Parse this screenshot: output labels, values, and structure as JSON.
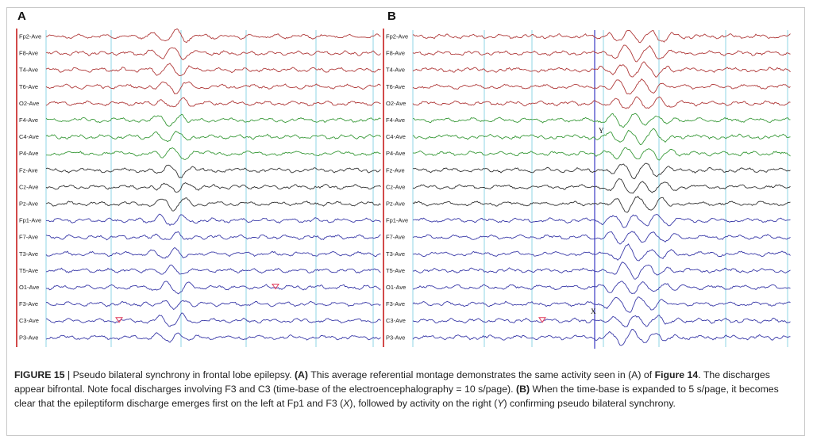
{
  "panels": [
    {
      "letter": "A",
      "channels": [
        "Fp2-Ave",
        "F8-Ave",
        "T4-Ave",
        "T6-Ave",
        "O2-Ave",
        "F4-Ave",
        "C4-Ave",
        "P4-Ave",
        "Fz-Ave",
        "Cz-Ave",
        "Pz-Ave",
        "Fp1-Ave",
        "F7-Ave",
        "T3-Ave",
        "T5-Ave",
        "O1-Ave",
        "F3-Ave",
        "C3-Ave",
        "P3-Ave"
      ]
    },
    {
      "letter": "B",
      "channels": [
        "Fp2-Ave",
        "F8-Ave",
        "T4-Ave",
        "T6-Ave",
        "O2-Ave",
        "F4-Ave",
        "C4-Ave",
        "P4-Ave",
        "Fz-Ave",
        "Cz-Ave",
        "Pz-Ave",
        "Fp1-Ave",
        "F7-Ave",
        "T3-Ave",
        "T5-Ave",
        "O1-Ave",
        "F3-Ave",
        "C3-Ave",
        "P3-Ave"
      ],
      "markers": {
        "x": "X",
        "y": "Y"
      }
    }
  ],
  "trace_colors": {
    "right": "#b03a3a",
    "central_right": "#3a9a3a",
    "midline": "#333333",
    "left": "#3a3aa8",
    "marker_line": "#5555cc",
    "gridline": "#8fd6e6",
    "label_bar": "#d24a4a"
  },
  "caption": {
    "figure_label": "FIGURE 15",
    "sep": " | ",
    "t1": "Pseudo bilateral synchrony in frontal lobe epilepsy. ",
    "a": "(A)",
    "t2": " This average referential montage demonstrates the same activity seen in (A) of ",
    "fig14": "Figure 14",
    "t3": ". The discharges appear bifrontal. Note focal discharges involving F3 and C3 (time-base of the electroencephalography = 10 s/page). ",
    "b": "(B)",
    "t4": " When the time-base is expanded to 5 s/page, it becomes clear that the epileptiform discharge emerges first on the left at Fp1 and F3 (",
    "x": "X",
    "t5": "), followed by activity on the right (",
    "y": "Y",
    "t6": ") confirming pseudo bilateral synchrony."
  }
}
